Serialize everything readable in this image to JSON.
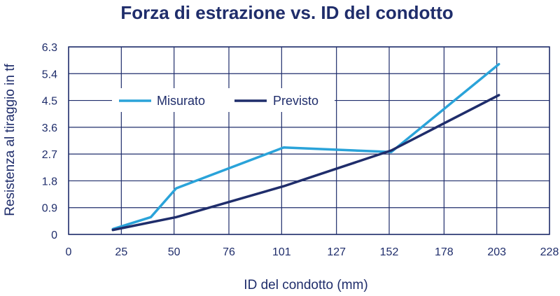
{
  "chart_data": {
    "type": "line",
    "title": "Forza di estrazione vs. ID del condotto",
    "xlabel": "ID del condotto (mm)",
    "ylabel": "Resistenza al tiraggio in tf",
    "x_ticks": [
      "0",
      "25",
      "50",
      "76",
      "101",
      "127",
      "152",
      "178",
      "203",
      "228"
    ],
    "x_tick_values": [
      0,
      25,
      50,
      76,
      101,
      127,
      152,
      178,
      203,
      228
    ],
    "y_ticks": [
      "0",
      "0.9",
      "1.8",
      "2.7",
      "3.6",
      "4.5",
      "5.4",
      "6.3"
    ],
    "y_tick_values": [
      0,
      0.9,
      1.8,
      2.7,
      3.6,
      4.5,
      5.4,
      6.3
    ],
    "xlim": [
      0,
      228
    ],
    "ylim": [
      0,
      6.3
    ],
    "grid": true,
    "legend_position": "top-left inside",
    "series": [
      {
        "name": "Misurato",
        "color": "#2aa3d9",
        "points": [
          [
            21,
            0.18
          ],
          [
            39,
            0.58
          ],
          [
            51,
            1.55
          ],
          [
            102,
            2.92
          ],
          [
            153,
            2.77
          ],
          [
            204,
            5.72
          ]
        ]
      },
      {
        "name": "Previsto",
        "color": "#1f2d6b",
        "points": [
          [
            21,
            0.15
          ],
          [
            51,
            0.58
          ],
          [
            102,
            1.62
          ],
          [
            153,
            2.82
          ],
          [
            204,
            4.68
          ]
        ]
      }
    ]
  }
}
